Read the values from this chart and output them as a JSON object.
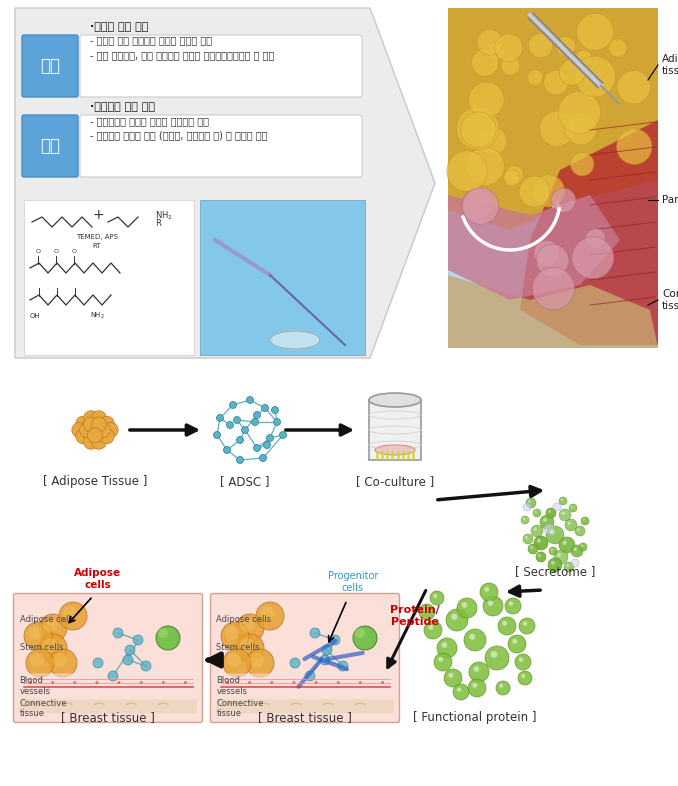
{
  "background_color": "#ffffff",
  "top_section": {
    "kijeon_label": "기존",
    "kaiseon_label": "개선",
    "label_bg": "#5ba3d9",
    "kijeon_title": "·수술적 유방 재건",
    "kijeon_bullet1": "- 실리콘 유방 보형물을 사용한 절개식 수술",
    "kijeon_bullet2": "- 높은 수술비용, 더딘 회복기간 등으로 부분절제환자에게 큰 부담",
    "kaiseon_title": "·비수술적 유방 재건",
    "kaiseon_bullet1": "- 더말필러의 개념을 도입한 비절개식 수술",
    "kaiseon_bullet2": "- 대용량에 적합한 물성 (유지능, 유방형태 등) 및 안전성 확보"
  },
  "bottom_section": {
    "step1_label": "[ Adipose Tissue ]",
    "step2_label": "[ ADSC ]",
    "step3_label": "[ Co-culture ]",
    "step4_label": "[ Secretome ]",
    "step5_label": "[ Functional protein ]",
    "step6_label": "[ Breast tissue ]",
    "step7_label": "[ Breast tissue ]"
  }
}
